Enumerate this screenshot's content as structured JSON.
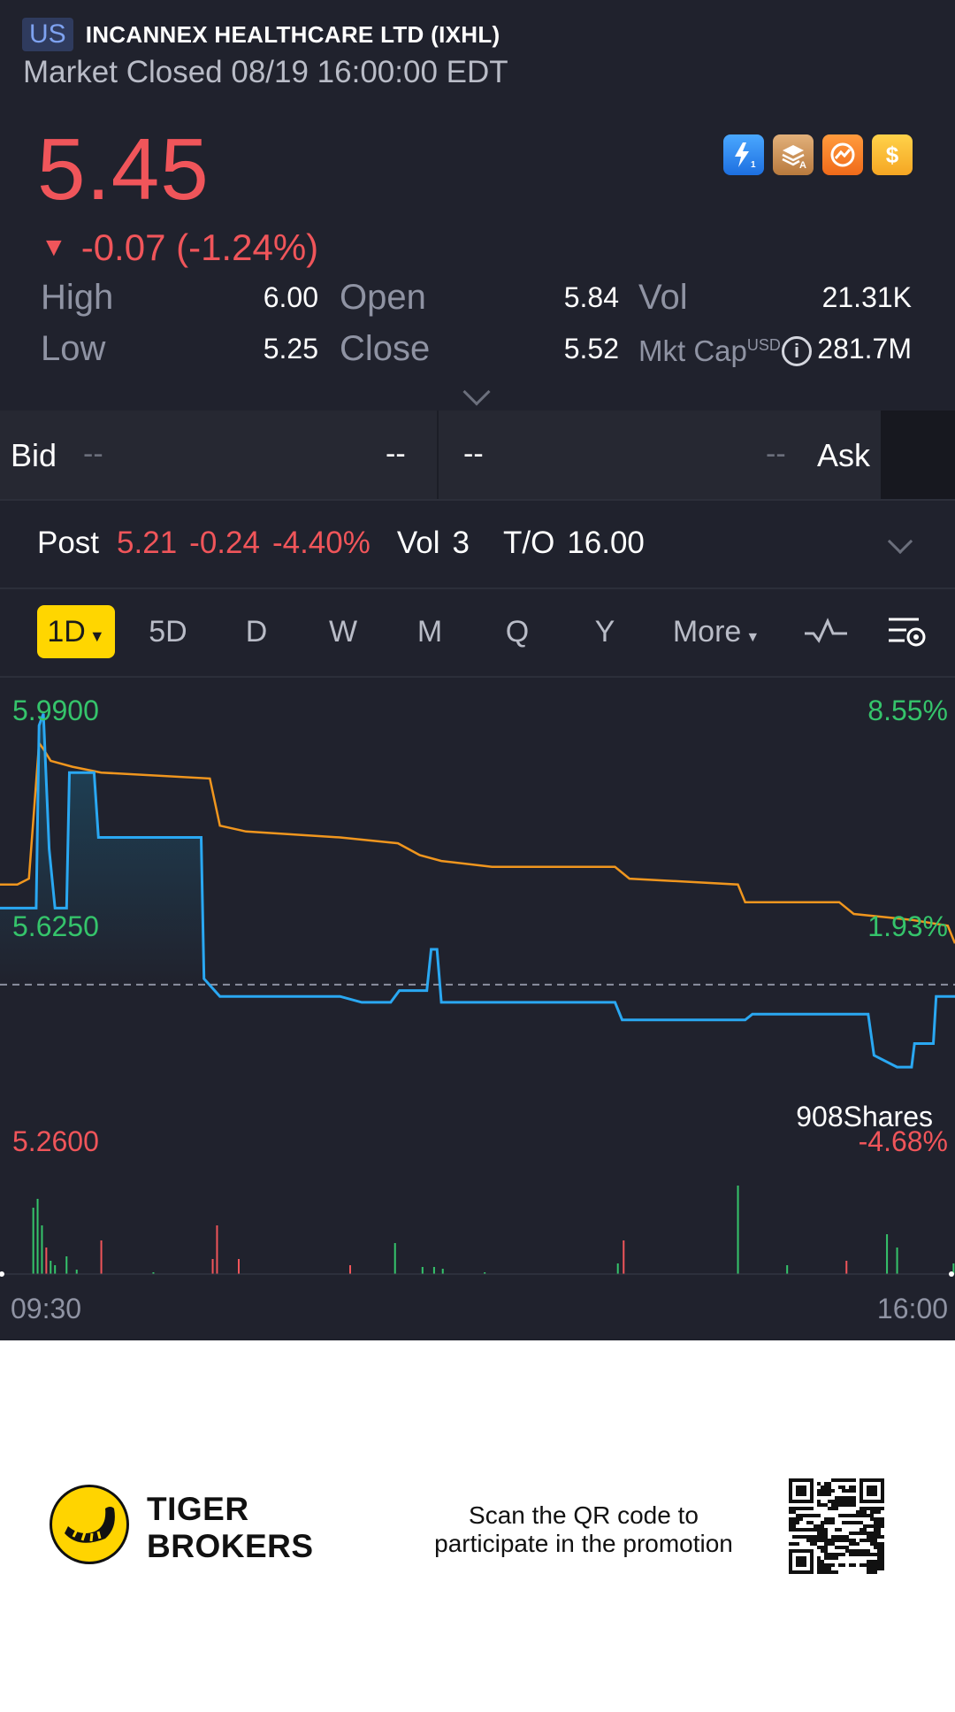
{
  "header": {
    "market_badge": "US",
    "stock_name": "INCANNEX HEALTHCARE LTD (IXHL)",
    "market_status": "Market Closed 08/19 16:00:00 EDT"
  },
  "quote": {
    "price": "5.45",
    "change_arrow": "▼",
    "change": "-0.07 (-1.24%)",
    "stats": {
      "high_label": "High",
      "high": "6.00",
      "low_label": "Low",
      "low": "5.25",
      "open_label": "Open",
      "open": "5.84",
      "close_label": "Close",
      "close": "5.52",
      "vol_label": "Vol",
      "vol": "21.31K",
      "mktcap_label": "Mkt Cap",
      "mktcap_currency": "USD",
      "mktcap": "281.7M"
    }
  },
  "quick_icons": [
    "lightning-level1-icon",
    "stack-a-icon",
    "options-icon",
    "dollar-icon"
  ],
  "bid_ask": {
    "bid_label": "Bid",
    "bid_price": "--",
    "bid_size": "--",
    "ask_price": "--",
    "ask_size": "--",
    "ask_label": "Ask"
  },
  "post_market": {
    "label": "Post",
    "price": "5.21",
    "change": "-0.24",
    "pct": "-4.40%",
    "vol_label": "Vol",
    "vol": "3",
    "turnover_label": "T/O",
    "turnover": "16.00"
  },
  "periods": {
    "active": "1D",
    "items": [
      "5D",
      "D",
      "W",
      "M",
      "Q",
      "Y"
    ],
    "more": "More"
  },
  "chart_data": {
    "type": "line",
    "y_left_ticks": [
      "5.9900",
      "5.6250",
      "5.2600"
    ],
    "y_right_ticks": [
      "8.55%",
      "1.93%",
      "-4.68%"
    ],
    "x_ticks": [
      "09:30",
      "16:00"
    ],
    "ylim": [
      5.26,
      5.99
    ],
    "prev_close": 5.52,
    "tooltip": "908Shares",
    "colors": {
      "price": "#2aa8f2",
      "avg": "#f0961e",
      "up": "#35c46b",
      "down": "#f0555a",
      "ref": "#8c8fa0"
    },
    "series": [
      {
        "values": [
          [
            0,
            5.65
          ],
          [
            2.5,
            5.65
          ],
          [
            2.7,
            5.96
          ],
          [
            3.0,
            5.98
          ],
          [
            3.4,
            5.75
          ],
          [
            3.8,
            5.65
          ],
          [
            4.6,
            5.65
          ],
          [
            4.8,
            5.88
          ],
          [
            6.5,
            5.88
          ],
          [
            6.8,
            5.77
          ],
          [
            13.9,
            5.77
          ],
          [
            14.1,
            5.53
          ],
          [
            15.2,
            5.5
          ],
          [
            23.5,
            5.5
          ],
          [
            25.0,
            5.49
          ],
          [
            27.0,
            5.49
          ],
          [
            27.6,
            5.51
          ],
          [
            29.5,
            5.51
          ],
          [
            29.8,
            5.58
          ],
          [
            30.2,
            5.58
          ],
          [
            30.5,
            5.49
          ],
          [
            42.5,
            5.49
          ],
          [
            43.0,
            5.46
          ],
          [
            51.5,
            5.46
          ],
          [
            52.0,
            5.47
          ],
          [
            60.0,
            5.47
          ],
          [
            60.4,
            5.4
          ],
          [
            62.0,
            5.38
          ],
          [
            63.0,
            5.38
          ],
          [
            63.2,
            5.42
          ],
          [
            64.5,
            5.42
          ],
          [
            64.7,
            5.5
          ],
          [
            66.0,
            5.5
          ]
        ]
      },
      {
        "values": [
          [
            0,
            5.69
          ],
          [
            1.2,
            5.69
          ],
          [
            2.0,
            5.7
          ],
          [
            2.7,
            5.93
          ],
          [
            3.0,
            5.92
          ],
          [
            3.5,
            5.9
          ],
          [
            5.0,
            5.89
          ],
          [
            7.0,
            5.88
          ],
          [
            14.5,
            5.87
          ],
          [
            15.2,
            5.79
          ],
          [
            17.0,
            5.78
          ],
          [
            23.5,
            5.77
          ],
          [
            27.5,
            5.76
          ],
          [
            29.0,
            5.74
          ],
          [
            30.5,
            5.73
          ],
          [
            34.0,
            5.72
          ],
          [
            42.5,
            5.72
          ],
          [
            43.5,
            5.7
          ],
          [
            51.0,
            5.69
          ],
          [
            51.5,
            5.66
          ],
          [
            58.0,
            5.66
          ],
          [
            59.0,
            5.64
          ],
          [
            63.0,
            5.63
          ],
          [
            65.5,
            5.62
          ],
          [
            66.0,
            5.59
          ]
        ]
      }
    ],
    "volume_bars": [
      {
        "x": 2.3,
        "v": 0.75,
        "c": "up"
      },
      {
        "x": 2.6,
        "v": 0.85,
        "c": "up"
      },
      {
        "x": 2.9,
        "v": 0.55,
        "c": "up"
      },
      {
        "x": 3.2,
        "v": 0.3,
        "c": "down"
      },
      {
        "x": 3.5,
        "v": 0.15,
        "c": "up"
      },
      {
        "x": 3.8,
        "v": 0.1,
        "c": "up"
      },
      {
        "x": 4.6,
        "v": 0.2,
        "c": "up"
      },
      {
        "x": 5.3,
        "v": 0.05,
        "c": "up"
      },
      {
        "x": 7.0,
        "v": 0.38,
        "c": "down"
      },
      {
        "x": 10.6,
        "v": 0.02,
        "c": "up"
      },
      {
        "x": 14.7,
        "v": 0.17,
        "c": "down"
      },
      {
        "x": 15.0,
        "v": 0.55,
        "c": "down"
      },
      {
        "x": 16.5,
        "v": 0.17,
        "c": "down"
      },
      {
        "x": 24.2,
        "v": 0.1,
        "c": "down"
      },
      {
        "x": 27.3,
        "v": 0.35,
        "c": "up"
      },
      {
        "x": 29.2,
        "v": 0.08,
        "c": "up"
      },
      {
        "x": 30.0,
        "v": 0.08,
        "c": "up"
      },
      {
        "x": 30.6,
        "v": 0.06,
        "c": "up"
      },
      {
        "x": 33.5,
        "v": 0.02,
        "c": "up"
      },
      {
        "x": 42.7,
        "v": 0.12,
        "c": "up"
      },
      {
        "x": 43.1,
        "v": 0.38,
        "c": "down"
      },
      {
        "x": 51.0,
        "v": 1.0,
        "c": "up"
      },
      {
        "x": 54.4,
        "v": 0.1,
        "c": "up"
      },
      {
        "x": 58.5,
        "v": 0.15,
        "c": "down"
      },
      {
        "x": 61.3,
        "v": 0.45,
        "c": "up"
      },
      {
        "x": 62.0,
        "v": 0.3,
        "c": "up"
      },
      {
        "x": 65.9,
        "v": 0.12,
        "c": "up"
      }
    ],
    "grid": false,
    "legend": "none"
  },
  "footer": {
    "brand_line1": "TIGER",
    "brand_line2": "BROKERS",
    "promo_line1": "Scan the QR code to",
    "promo_line2": "participate in the promotion"
  }
}
